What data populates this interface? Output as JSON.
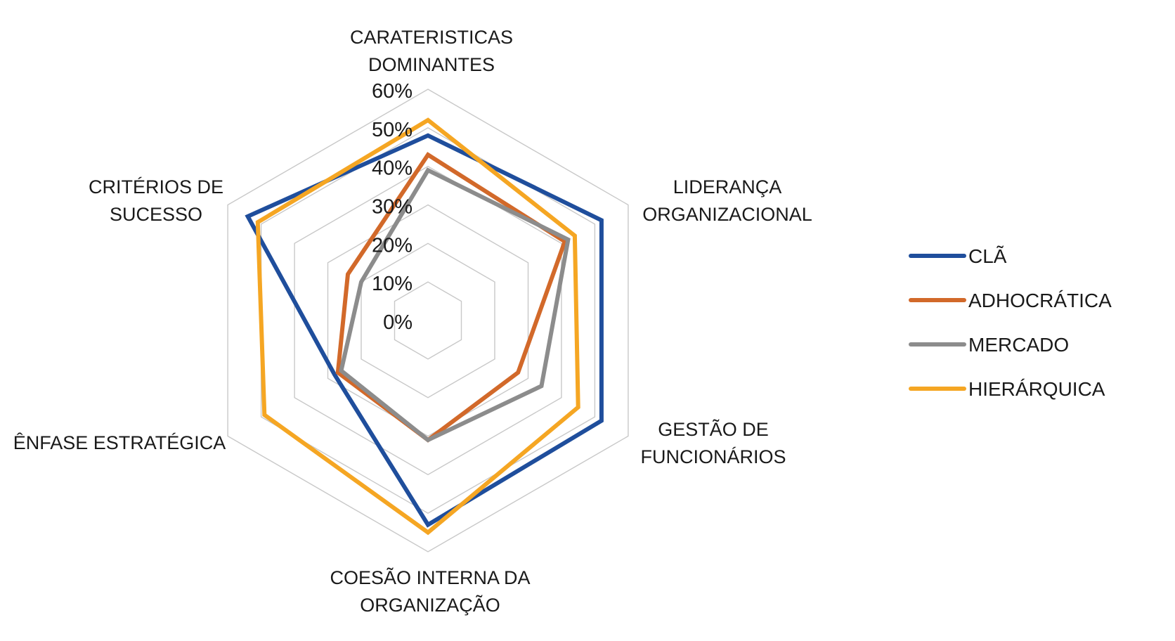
{
  "chart_data": {
    "type": "radar",
    "axes": [
      [
        "CARATERISTICAS",
        "DOMINANTES"
      ],
      [
        "LIDERANÇA",
        "ORGANIZACIONAL"
      ],
      [
        "GESTÃO DE",
        "FUNCIONÁRIOS"
      ],
      [
        "COESÃO INTERNA DA",
        "ORGANIZAÇÃO"
      ],
      [
        "ÊNFASE ESTRATÉGICA"
      ],
      [
        "CRITÉRIOS DE",
        "SUCESSO"
      ]
    ],
    "rlim": [
      0,
      60
    ],
    "ticks": [
      0,
      10,
      20,
      30,
      40,
      50,
      60
    ],
    "tick_labels": [
      "0%",
      "10%",
      "20%",
      "30%",
      "40%",
      "50%",
      "60%"
    ],
    "grid": true,
    "legend_position": "right",
    "series": [
      {
        "name": "CLÃ",
        "color": "#1f4e9c",
        "values": [
          48,
          52,
          52,
          53,
          28,
          54
        ]
      },
      {
        "name": "ADHOCRÁTICA",
        "color": "#d2692a",
        "values": [
          43,
          41,
          27,
          31,
          27,
          24
        ]
      },
      {
        "name": "MERCADO",
        "color": "#8c8c8c",
        "values": [
          39,
          42,
          34,
          31,
          26,
          20
        ]
      },
      {
        "name": "HIERÁRQUICA",
        "color": "#f5a623",
        "values": [
          52,
          44,
          45,
          55,
          49,
          51
        ]
      }
    ]
  }
}
